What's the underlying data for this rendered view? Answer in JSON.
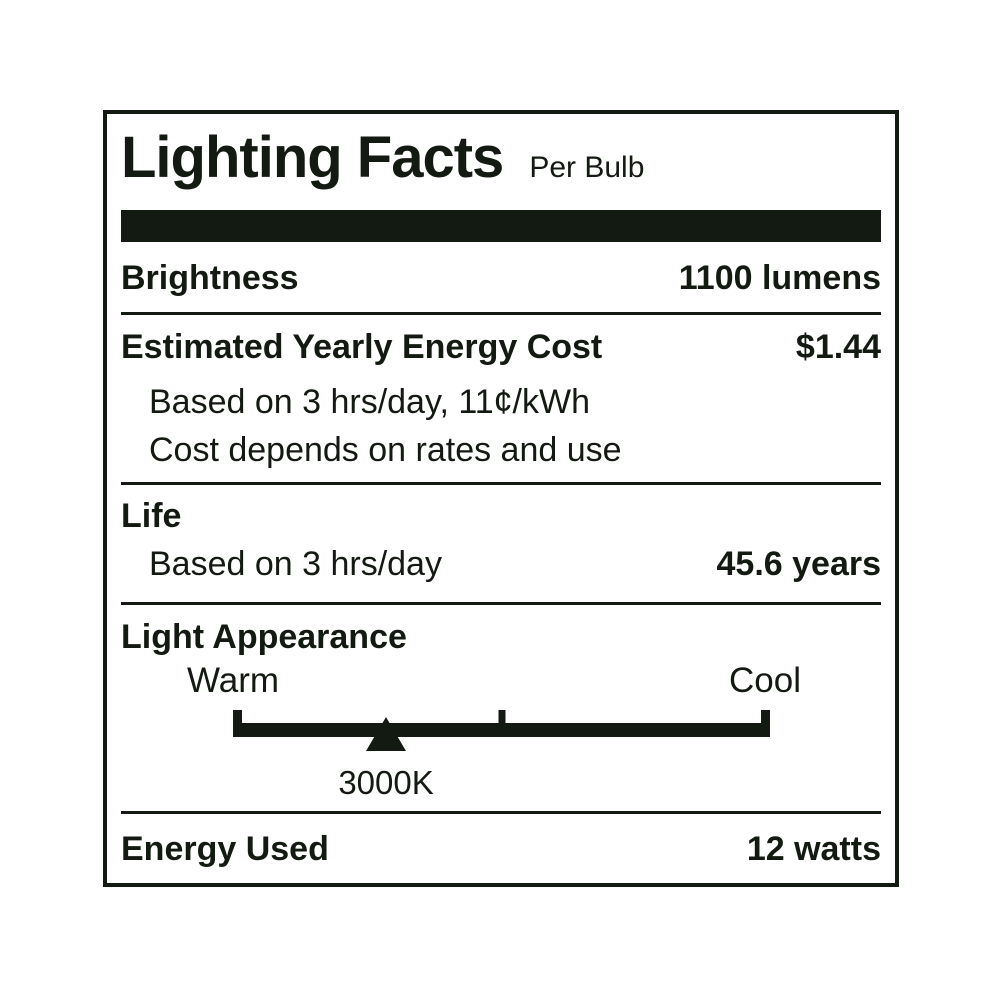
{
  "label": {
    "ink_color": "#131a11",
    "title": "Lighting Facts",
    "title_suffix": "Per Bulb",
    "brightness": {
      "label": "Brightness",
      "value": "1100 lumens"
    },
    "energy_cost": {
      "label": "Estimated Yearly Energy Cost",
      "value": "$1.44",
      "note1": "Based on 3 hrs/day, 11¢/kWh",
      "note2": "Cost depends on rates and use"
    },
    "life": {
      "label": "Life",
      "note": "Based on 3 hrs/day",
      "value": "45.6 years"
    },
    "light_appearance": {
      "label": "Light Appearance",
      "warm": "Warm",
      "cool": "Cool",
      "kelvin": "3000K",
      "pointer_percent": 28.5
    },
    "energy_used": {
      "label": "Energy Used",
      "value": "12 watts"
    }
  }
}
